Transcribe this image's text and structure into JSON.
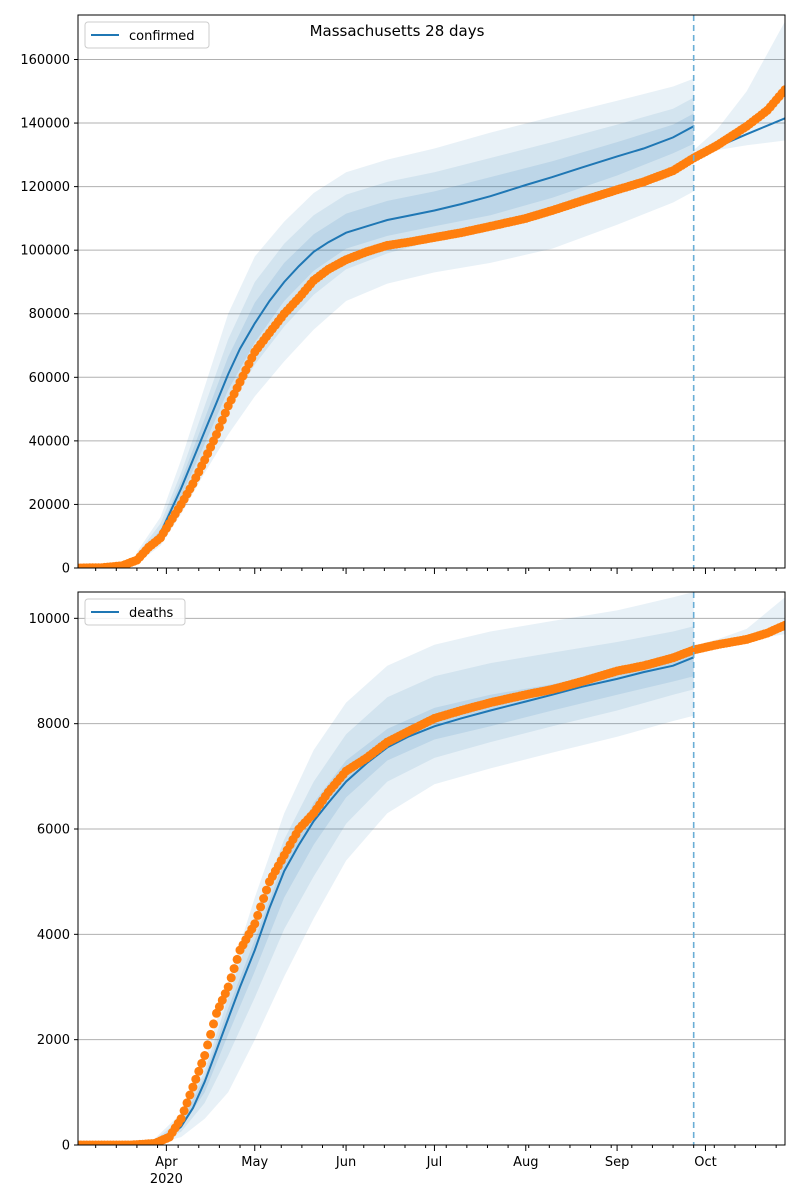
{
  "figure_title": "Massachusetts 28 days",
  "x_axis": {
    "month_ticks": [
      "Apr",
      "May",
      "Jun",
      "Jul",
      "Aug",
      "Sep",
      "Oct"
    ],
    "year_label": "2020"
  },
  "colors": {
    "line": "#1f77b4",
    "observed": "#ff7f0e",
    "band": "#1f77b4",
    "grid": "#b0b0b0",
    "cutoff": "#6aaed6"
  },
  "chart_data": [
    {
      "type": "line",
      "panel": "confirmed",
      "legend": [
        "confirmed"
      ],
      "legend_position": "top-left",
      "grid": "horizontal",
      "ylim": [
        0,
        174000
      ],
      "yticks": [
        0,
        20000,
        40000,
        60000,
        80000,
        100000,
        120000,
        140000,
        160000
      ],
      "ytick_labels": [
        "0",
        "20000",
        "40000",
        "60000",
        "80000",
        "100000",
        "120000",
        "140000",
        "160000"
      ],
      "xlim": [
        "2020-03-02",
        "2020-10-28"
      ],
      "forecast_start": "2020-09-27",
      "series": [
        {
          "name": "confirmed",
          "kind": "model",
          "x": [
            "2020-03-02",
            "2020-03-10",
            "2020-03-17",
            "2020-03-22",
            "2020-03-26",
            "2020-03-30",
            "2020-04-02",
            "2020-04-06",
            "2020-04-10",
            "2020-04-14",
            "2020-04-18",
            "2020-04-22",
            "2020-04-26",
            "2020-05-01",
            "2020-05-06",
            "2020-05-11",
            "2020-05-16",
            "2020-05-21",
            "2020-05-26",
            "2020-06-01",
            "2020-06-08",
            "2020-06-15",
            "2020-06-22",
            "2020-07-01",
            "2020-07-10",
            "2020-07-20",
            "2020-08-01",
            "2020-08-10",
            "2020-08-20",
            "2020-09-01",
            "2020-09-10",
            "2020-09-20",
            "2020-09-27",
            "2020-10-05",
            "2020-10-15",
            "2020-10-28"
          ],
          "y": [
            0,
            200,
            1000,
            3000,
            7000,
            11000,
            17000,
            25000,
            34000,
            43000,
            52000,
            61000,
            69000,
            77000,
            84000,
            90000,
            95000,
            99500,
            102500,
            105500,
            107500,
            109500,
            110800,
            112500,
            114500,
            117000,
            120500,
            123000,
            126000,
            129500,
            132000,
            135500,
            139000,
            132500,
            136500,
            141500
          ]
        },
        {
          "name": "observed",
          "kind": "points",
          "x": [
            "2020-03-02",
            "2020-03-10",
            "2020-03-17",
            "2020-03-22",
            "2020-03-26",
            "2020-03-30",
            "2020-04-02",
            "2020-04-06",
            "2020-04-10",
            "2020-04-14",
            "2020-04-18",
            "2020-04-22",
            "2020-04-26",
            "2020-05-01",
            "2020-05-06",
            "2020-05-11",
            "2020-05-16",
            "2020-05-21",
            "2020-05-26",
            "2020-06-01",
            "2020-06-08",
            "2020-06-15",
            "2020-06-22",
            "2020-07-01",
            "2020-07-10",
            "2020-07-20",
            "2020-08-01",
            "2020-08-10",
            "2020-08-20",
            "2020-09-01",
            "2020-09-10",
            "2020-09-20",
            "2020-09-27",
            "2020-10-05",
            "2020-10-15",
            "2020-10-22",
            "2020-10-28"
          ],
          "y": [
            0,
            100,
            700,
            2500,
            6500,
            9500,
            14000,
            20000,
            26500,
            34000,
            42000,
            51000,
            58500,
            68000,
            74000,
            80000,
            85000,
            90500,
            94000,
            97000,
            99500,
            101500,
            102500,
            104000,
            105500,
            107500,
            110000,
            112500,
            115500,
            119000,
            121500,
            125000,
            129000,
            133000,
            139000,
            144000,
            150500
          ]
        }
      ],
      "bands": [
        {
          "name": "outer",
          "x": [
            "2020-03-22",
            "2020-03-30",
            "2020-04-06",
            "2020-04-14",
            "2020-04-22",
            "2020-05-01",
            "2020-05-11",
            "2020-05-21",
            "2020-06-01",
            "2020-06-15",
            "2020-07-01",
            "2020-07-20",
            "2020-08-10",
            "2020-09-01",
            "2020-09-20",
            "2020-09-27"
          ],
          "lower": [
            1500,
            7000,
            17000,
            30000,
            42000,
            54000,
            65000,
            75000,
            84000,
            89500,
            93000,
            96000,
            100500,
            108000,
            115000,
            118500
          ],
          "upper": [
            5000,
            16000,
            34000,
            57000,
            80000,
            98000,
            109000,
            118000,
            124500,
            128500,
            132000,
            137000,
            142000,
            147000,
            151500,
            154000
          ]
        },
        {
          "name": "middle",
          "x": [
            "2020-03-22",
            "2020-03-30",
            "2020-04-06",
            "2020-04-14",
            "2020-04-22",
            "2020-05-01",
            "2020-05-11",
            "2020-05-21",
            "2020-06-01",
            "2020-06-15",
            "2020-07-01",
            "2020-07-20",
            "2020-08-10",
            "2020-09-01",
            "2020-09-20",
            "2020-09-27"
          ],
          "lower": [
            2000,
            8500,
            20000,
            35000,
            50000,
            64000,
            76000,
            86000,
            94000,
            99000,
            103000,
            107000,
            111500,
            119000,
            126000,
            130000
          ],
          "upper": [
            4200,
            14000,
            30000,
            51000,
            72000,
            90000,
            102000,
            111000,
            117500,
            121500,
            124500,
            129000,
            134000,
            139500,
            144500,
            148000
          ]
        },
        {
          "name": "inner",
          "x": [
            "2020-03-22",
            "2020-03-30",
            "2020-04-06",
            "2020-04-14",
            "2020-04-22",
            "2020-05-01",
            "2020-05-11",
            "2020-05-21",
            "2020-06-01",
            "2020-06-15",
            "2020-07-01",
            "2020-07-20",
            "2020-08-10",
            "2020-09-01",
            "2020-09-20",
            "2020-09-27"
          ],
          "lower": [
            2500,
            10000,
            22500,
            39000,
            56000,
            71000,
            84000,
            93500,
            100500,
            104500,
            107500,
            111000,
            116500,
            123500,
            130500,
            133500
          ],
          "upper": [
            3500,
            12000,
            27500,
            47000,
            66500,
            83500,
            96000,
            105000,
            111500,
            115500,
            118500,
            123000,
            128000,
            134000,
            139500,
            143000
          ]
        },
        {
          "name": "forecast",
          "x": [
            "2020-09-27",
            "2020-10-05",
            "2020-10-15",
            "2020-10-28"
          ],
          "lower": [
            129000,
            131500,
            133000,
            134500
          ],
          "upper": [
            131500,
            138000,
            150000,
            172000
          ]
        }
      ]
    },
    {
      "type": "line",
      "panel": "deaths",
      "legend": [
        "deaths"
      ],
      "legend_position": "top-left",
      "grid": "horizontal",
      "ylim": [
        0,
        10500
      ],
      "yticks": [
        0,
        2000,
        4000,
        6000,
        8000,
        10000
      ],
      "ytick_labels": [
        "0",
        "2000",
        "4000",
        "6000",
        "8000",
        "10000"
      ],
      "xlim": [
        "2020-03-02",
        "2020-10-28"
      ],
      "forecast_start": "2020-09-27",
      "series": [
        {
          "name": "deaths",
          "kind": "model",
          "x": [
            "2020-03-02",
            "2020-03-20",
            "2020-03-28",
            "2020-04-02",
            "2020-04-06",
            "2020-04-10",
            "2020-04-14",
            "2020-04-18",
            "2020-04-22",
            "2020-04-26",
            "2020-05-01",
            "2020-05-06",
            "2020-05-11",
            "2020-05-16",
            "2020-05-21",
            "2020-05-26",
            "2020-06-01",
            "2020-06-08",
            "2020-06-15",
            "2020-06-22",
            "2020-07-01",
            "2020-07-10",
            "2020-07-20",
            "2020-08-01",
            "2020-08-10",
            "2020-08-20",
            "2020-09-01",
            "2020-09-10",
            "2020-09-20",
            "2020-09-27",
            "2020-10-05",
            "2020-10-15",
            "2020-10-28"
          ],
          "y": [
            0,
            0,
            50,
            150,
            350,
            700,
            1200,
            1800,
            2400,
            3000,
            3700,
            4500,
            5200,
            5700,
            6150,
            6500,
            6900,
            7250,
            7550,
            7750,
            7950,
            8100,
            8250,
            8420,
            8550,
            8700,
            8850,
            8980,
            9100,
            9260,
            9480,
            9640,
            9840
          ]
        },
        {
          "name": "observed",
          "kind": "points",
          "x": [
            "2020-03-02",
            "2020-03-20",
            "2020-03-28",
            "2020-04-02",
            "2020-04-06",
            "2020-04-10",
            "2020-04-14",
            "2020-04-18",
            "2020-04-22",
            "2020-04-26",
            "2020-05-01",
            "2020-05-06",
            "2020-05-11",
            "2020-05-16",
            "2020-05-21",
            "2020-05-26",
            "2020-06-01",
            "2020-06-08",
            "2020-06-15",
            "2020-06-22",
            "2020-07-01",
            "2020-07-10",
            "2020-07-20",
            "2020-08-01",
            "2020-08-10",
            "2020-08-20",
            "2020-09-01",
            "2020-09-10",
            "2020-09-20",
            "2020-09-27",
            "2020-10-05",
            "2020-10-15",
            "2020-10-22",
            "2020-10-28"
          ],
          "y": [
            0,
            0,
            30,
            150,
            500,
            1100,
            1700,
            2500,
            3000,
            3700,
            4200,
            5000,
            5500,
            6000,
            6300,
            6700,
            7100,
            7350,
            7650,
            7850,
            8100,
            8250,
            8400,
            8550,
            8650,
            8800,
            9000,
            9100,
            9250,
            9400,
            9500,
            9600,
            9720,
            9870
          ]
        }
      ],
      "bands": [
        {
          "name": "outer",
          "x": [
            "2020-03-28",
            "2020-04-06",
            "2020-04-14",
            "2020-04-22",
            "2020-05-01",
            "2020-05-11",
            "2020-05-21",
            "2020-06-01",
            "2020-06-15",
            "2020-07-01",
            "2020-07-20",
            "2020-08-10",
            "2020-09-01",
            "2020-09-20",
            "2020-09-27"
          ],
          "lower": [
            20,
            150,
            500,
            1000,
            2000,
            3200,
            4300,
            5400,
            6300,
            6850,
            7150,
            7450,
            7750,
            8050,
            8150
          ],
          "upper": [
            120,
            600,
            1600,
            3100,
            4700,
            6300,
            7500,
            8400,
            9100,
            9500,
            9750,
            9950,
            10150,
            10400,
            10500
          ]
        },
        {
          "name": "middle",
          "x": [
            "2020-03-28",
            "2020-04-06",
            "2020-04-14",
            "2020-04-22",
            "2020-05-01",
            "2020-05-11",
            "2020-05-21",
            "2020-06-01",
            "2020-06-15",
            "2020-07-01",
            "2020-07-20",
            "2020-08-10",
            "2020-09-01",
            "2020-09-20",
            "2020-09-27"
          ],
          "lower": [
            35,
            250,
            800,
            1700,
            2800,
            4100,
            5100,
            6100,
            6900,
            7350,
            7650,
            7950,
            8250,
            8550,
            8650
          ],
          "upper": [
            90,
            500,
            1400,
            2800,
            4300,
            5800,
            6900,
            7800,
            8500,
            8900,
            9150,
            9350,
            9550,
            9750,
            9850
          ]
        },
        {
          "name": "inner",
          "x": [
            "2020-03-28",
            "2020-04-06",
            "2020-04-14",
            "2020-04-22",
            "2020-05-01",
            "2020-05-11",
            "2020-05-21",
            "2020-06-01",
            "2020-06-15",
            "2020-07-01",
            "2020-07-20",
            "2020-08-10",
            "2020-09-01",
            "2020-09-20",
            "2020-09-27"
          ],
          "lower": [
            45,
            330,
            1000,
            2100,
            3300,
            4700,
            5700,
            6600,
            7300,
            7700,
            7950,
            8250,
            8550,
            8800,
            8900
          ],
          "upper": [
            75,
            420,
            1300,
            2600,
            3900,
            5400,
            6500,
            7300,
            7900,
            8300,
            8550,
            8750,
            9000,
            9250,
            9350
          ]
        },
        {
          "name": "forecast",
          "x": [
            "2020-09-27",
            "2020-10-05",
            "2020-10-15",
            "2020-10-28"
          ],
          "lower": [
            9380,
            9450,
            9580,
            9700
          ],
          "upper": [
            9480,
            9600,
            9800,
            10400
          ]
        }
      ]
    }
  ]
}
